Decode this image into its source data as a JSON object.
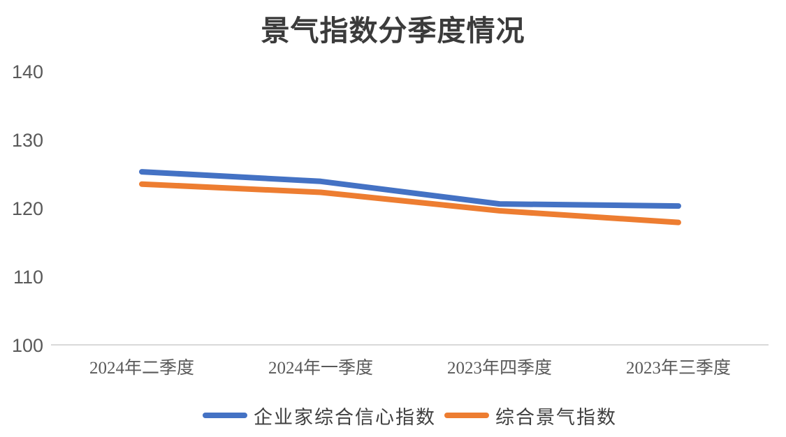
{
  "title": "景气指数分季度情况",
  "chart_data": {
    "type": "line",
    "title": "景气指数分季度情况",
    "categories": [
      "2024年二季度",
      "2024年一季度",
      "2023年四季度",
      "2023年三季度"
    ],
    "series": [
      {
        "name": "企业家综合信心指数",
        "color": "#4472C4",
        "values": [
          125.4,
          124.0,
          120.7,
          120.4
        ]
      },
      {
        "name": "综合景气指数",
        "color": "#ED7D31",
        "values": [
          123.6,
          122.4,
          119.7,
          118.0
        ]
      }
    ],
    "ylim": [
      100,
      140
    ],
    "ytick_step": 10,
    "yticks_display": [
      "140",
      "130",
      "120",
      "110",
      "100"
    ],
    "grid": false,
    "legend_position": "bottom",
    "axis_color": "#D9D9D9",
    "tick_text_color": "#595959",
    "title_color": "#3b3b3b"
  }
}
